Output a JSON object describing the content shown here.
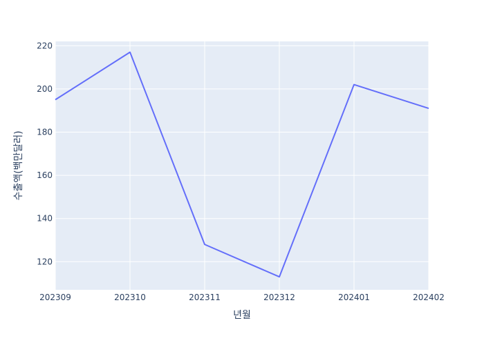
{
  "chart_data": {
    "type": "line",
    "title": "",
    "xlabel": "년월",
    "ylabel": "수출액(백만달러)",
    "categories": [
      "202309",
      "202310",
      "202311",
      "202312",
      "202401",
      "202402"
    ],
    "series": [
      {
        "values": [
          195,
          217,
          128,
          113,
          202,
          191
        ]
      }
    ],
    "ylim": [
      107,
      222
    ],
    "yticks": [
      120,
      140,
      160,
      180,
      200,
      220
    ],
    "grid": true,
    "colors": {
      "plot_bg": "#e5ecf6",
      "grid": "#ffffff",
      "line": "#636efa",
      "text": "#2a3f5f"
    }
  }
}
